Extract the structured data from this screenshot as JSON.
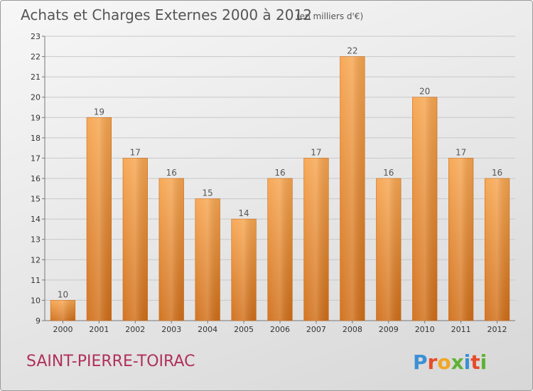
{
  "chart_data": {
    "type": "bar",
    "title": "Achats et Charges Externes 2000 à 2012",
    "subtitle": "(en milliers d'€)",
    "categories": [
      "2000",
      "2001",
      "2002",
      "2003",
      "2004",
      "2005",
      "2006",
      "2007",
      "2008",
      "2009",
      "2010",
      "2011",
      "2012"
    ],
    "values": [
      10,
      19,
      17,
      16,
      15,
      14,
      16,
      17,
      22,
      16,
      20,
      17,
      16
    ],
    "ylim": [
      9,
      23
    ],
    "yticks": [
      "9",
      "10",
      "11",
      "12",
      "13",
      "14",
      "15",
      "16",
      "17",
      "18",
      "19",
      "20",
      "21",
      "22",
      "23"
    ],
    "grid": true,
    "bar_color": "#f0963c"
  },
  "commune_name": "SAINT-PIERRE-TOIRAC",
  "logo": {
    "text": "Proxiti",
    "letters": [
      {
        "ch": "P",
        "color": "#3a8fd6"
      },
      {
        "ch": "r",
        "color": "#e84b2a"
      },
      {
        "ch": "o",
        "color": "#f2a623"
      },
      {
        "ch": "x",
        "color": "#5fb233"
      },
      {
        "ch": "i",
        "color": "#3a8fd6"
      },
      {
        "ch": "t",
        "color": "#e84b2a"
      },
      {
        "ch": "i",
        "color": "#5fb233"
      }
    ]
  }
}
